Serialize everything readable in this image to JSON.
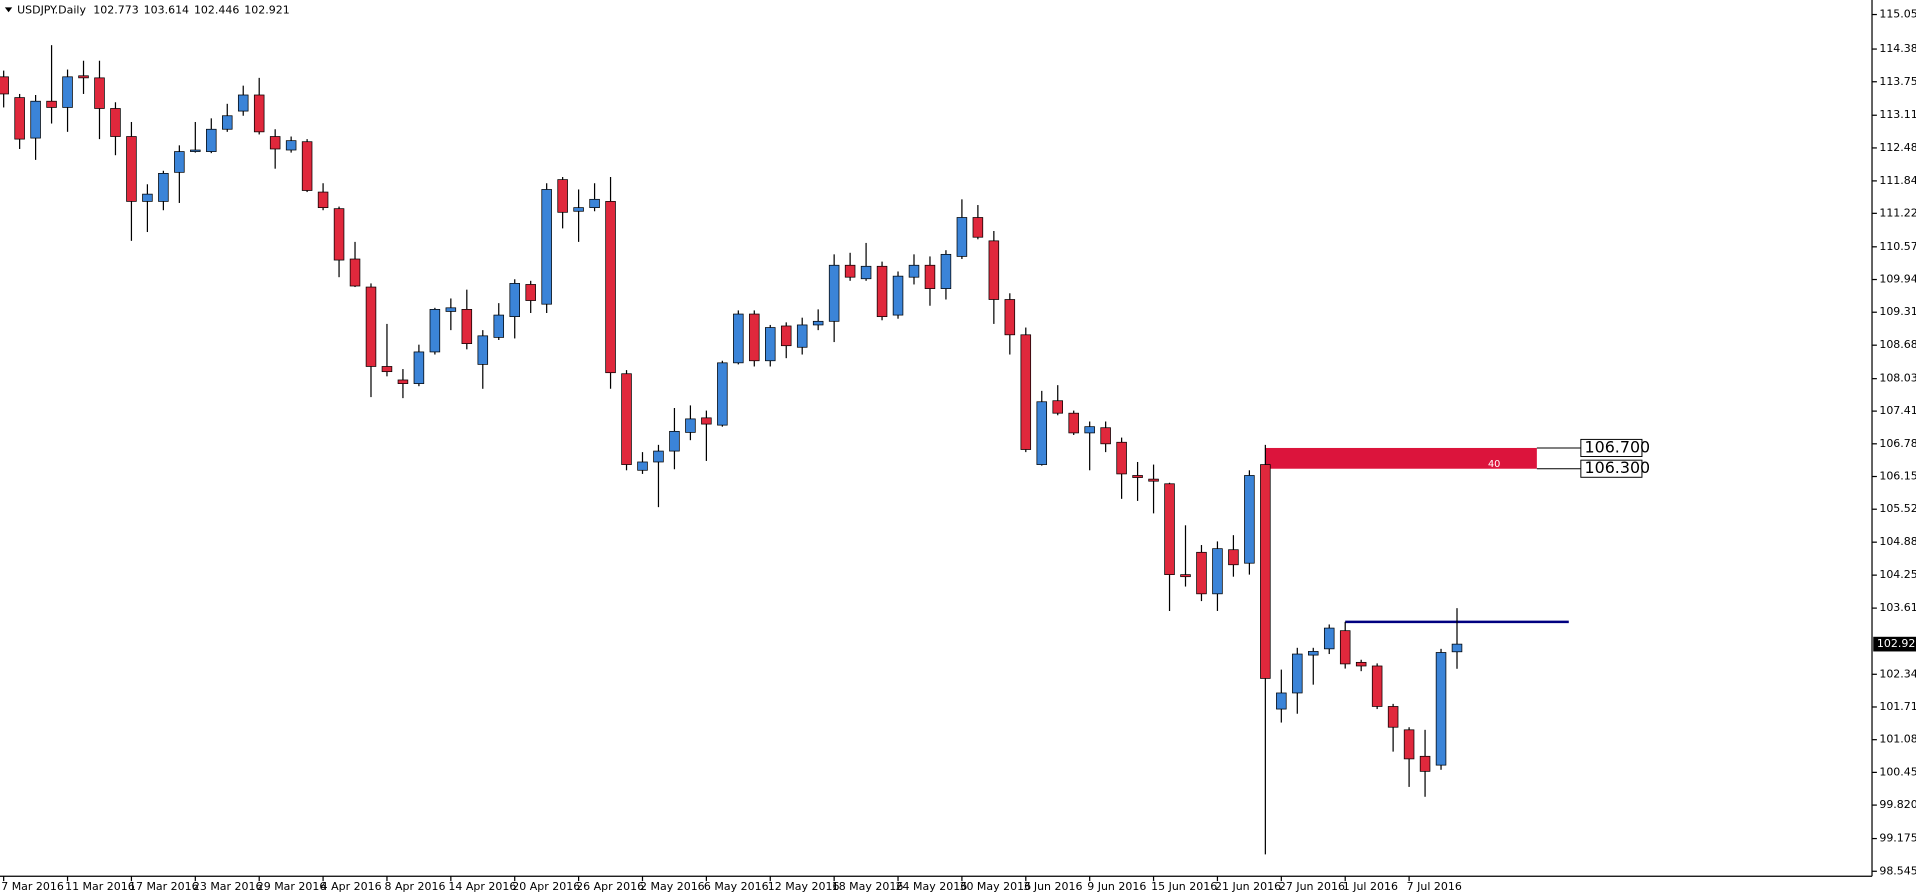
{
  "chart_data": {
    "type": "candlestick",
    "title": "USDJPY.Daily",
    "categories": [
      "7 Mar 2016",
      null,
      null,
      null,
      "11 Mar 2016",
      null,
      null,
      null,
      "17 Mar 2016",
      null,
      null,
      null,
      "23 Mar 2016",
      null,
      null,
      null,
      "29 Mar 2016",
      null,
      null,
      null,
      "4 Apr 2016",
      null,
      null,
      null,
      "8 Apr 2016",
      null,
      null,
      null,
      "14 Apr 2016",
      null,
      null,
      null,
      "20 Apr 2016",
      null,
      null,
      null,
      "26 Apr 2016",
      null,
      null,
      null,
      "2 May 2016",
      null,
      null,
      null,
      "6 May 2016",
      null,
      null,
      null,
      "12 May 2016",
      null,
      null,
      null,
      "18 May 2016",
      null,
      null,
      null,
      "24 May 2016",
      null,
      null,
      null,
      "30 May 2016",
      null,
      null,
      null,
      "3 Jun 2016",
      null,
      null,
      null,
      "9 Jun 2016",
      null,
      null,
      null,
      "15 Jun 2016",
      null,
      null,
      null,
      "21 Jun 2016",
      null,
      null,
      null,
      "27 Jun 2016",
      null,
      null,
      null,
      "1 Jul 2016",
      null,
      null,
      null,
      "7 Jul 2016",
      null,
      null,
      null
    ],
    "open": [
      113.85,
      113.45,
      112.67,
      113.38,
      113.26,
      113.87,
      113.83,
      113.24,
      112.7,
      111.45,
      111.45,
      112.01,
      112.41,
      112.41,
      112.84,
      113.19,
      113.5,
      112.7,
      112.44,
      112.6,
      111.63,
      111.31,
      110.34,
      109.8,
      108.27,
      108.01,
      107.94,
      108.55,
      109.33,
      109.37,
      108.31,
      108.83,
      109.23,
      109.85,
      109.47,
      111.87,
      111.26,
      111.33,
      111.45,
      108.13,
      106.27,
      106.43,
      106.64,
      107.0,
      107.28,
      107.14,
      108.34,
      109.28,
      108.38,
      109.05,
      108.64,
      109.07,
      109.14,
      110.22,
      109.96,
      110.2,
      109.26,
      109.99,
      110.22,
      109.77,
      110.39,
      111.14,
      110.69,
      109.56,
      108.88,
      106.38,
      107.61,
      107.37,
      106.99,
      107.09,
      106.81,
      106.17,
      106.1,
      106.01,
      104.26,
      104.69,
      103.89,
      104.74,
      104.48,
      106.38,
      101.67,
      101.98,
      102.71,
      102.83,
      103.18,
      102.57,
      102.5,
      101.72,
      101.27,
      100.76,
      100.59,
      102.773
    ],
    "high": [
      113.97,
      113.52,
      113.5,
      114.46,
      113.99,
      114.16,
      114.16,
      113.36,
      112.98,
      111.78,
      112.04,
      112.53,
      112.98,
      113.05,
      113.33,
      113.68,
      113.83,
      112.84,
      112.7,
      112.65,
      111.8,
      111.35,
      110.67,
      109.87,
      109.09,
      108.22,
      108.69,
      109.4,
      109.58,
      109.75,
      108.97,
      109.49,
      109.95,
      109.92,
      111.8,
      111.92,
      111.68,
      111.8,
      111.92,
      108.2,
      106.62,
      106.76,
      107.47,
      107.52,
      107.42,
      108.38,
      109.35,
      109.35,
      109.07,
      109.12,
      109.21,
      109.37,
      110.43,
      110.46,
      110.65,
      110.29,
      110.1,
      110.43,
      110.39,
      110.51,
      111.49,
      111.38,
      110.88,
      109.68,
      109.02,
      107.8,
      107.91,
      107.42,
      107.21,
      107.21,
      106.9,
      106.43,
      106.38,
      106.03,
      105.21,
      104.83,
      104.9,
      105.02,
      106.27,
      106.76,
      102.43,
      102.85,
      102.85,
      103.3,
      103.35,
      102.62,
      102.55,
      101.77,
      101.32,
      101.27,
      102.83,
      103.614
    ],
    "low": [
      113.26,
      112.46,
      112.25,
      112.95,
      112.79,
      113.52,
      112.65,
      112.34,
      110.69,
      110.86,
      111.28,
      111.42,
      112.39,
      112.38,
      112.79,
      113.1,
      112.74,
      112.08,
      112.39,
      111.63,
      111.28,
      109.99,
      109.8,
      107.68,
      108.08,
      107.66,
      107.89,
      108.5,
      108.97,
      108.6,
      107.84,
      108.78,
      108.81,
      109.3,
      109.3,
      110.93,
      110.67,
      111.26,
      107.84,
      106.27,
      106.2,
      105.56,
      106.29,
      106.85,
      106.45,
      107.11,
      108.31,
      108.27,
      108.27,
      108.43,
      108.5,
      108.97,
      108.74,
      109.92,
      109.92,
      109.16,
      109.19,
      109.85,
      109.44,
      109.56,
      110.34,
      110.72,
      109.09,
      108.5,
      106.62,
      106.36,
      107.33,
      106.95,
      106.27,
      106.62,
      105.72,
      105.68,
      105.44,
      103.56,
      104.03,
      103.75,
      103.56,
      104.22,
      104.26,
      98.87,
      101.41,
      101.58,
      102.14,
      102.73,
      102.45,
      102.4,
      101.67,
      100.85,
      100.17,
      99.98,
      100.5,
      102.446
    ],
    "close": [
      113.52,
      112.65,
      113.38,
      113.26,
      113.85,
      113.83,
      113.24,
      112.7,
      111.45,
      111.59,
      111.99,
      112.41,
      112.44,
      112.84,
      113.1,
      113.5,
      112.79,
      112.46,
      112.62,
      111.66,
      111.33,
      110.32,
      109.82,
      108.27,
      108.17,
      107.94,
      108.55,
      109.37,
      109.4,
      108.71,
      108.86,
      109.26,
      109.87,
      109.54,
      111.68,
      111.24,
      111.33,
      111.49,
      108.15,
      106.38,
      106.43,
      106.64,
      107.02,
      107.26,
      107.16,
      108.34,
      109.28,
      108.38,
      109.02,
      108.67,
      109.07,
      109.14,
      110.22,
      109.99,
      110.2,
      109.23,
      110.01,
      110.22,
      109.77,
      110.43,
      111.14,
      110.76,
      109.56,
      108.88,
      106.67,
      107.59,
      107.37,
      106.99,
      107.11,
      106.78,
      106.2,
      106.13,
      106.06,
      104.26,
      104.22,
      103.89,
      104.76,
      104.45,
      106.17,
      102.26,
      101.98,
      102.73,
      102.78,
      103.23,
      102.54,
      102.5,
      101.72,
      101.32,
      100.71,
      100.47,
      102.76,
      102.921
    ],
    "up_color": "#3b84d8",
    "down_color": "#e0283c",
    "ylim": [
      98.45,
      115.33
    ],
    "yticks": [
      115.05,
      114.385,
      113.755,
      {
        "value": 113.11,
        "label": "113.110"
      },
      {
        "value": 112.48,
        "label": "112.480"
      },
      111.845,
      {
        "value": 111.22,
        "label": "111.220"
      },
      110.575,
      109.945,
      109.315,
      {
        "value": 108.68,
        "label": "108.680"
      },
      108.035,
      {
        "value": 107.41,
        "label": "107.410"
      },
      {
        "value": 106.78,
        "label": "106.780"
      },
      {
        "value": 106.15,
        "label": "106.150"
      },
      {
        "value": 105.52,
        "label": "105.520"
      },
      104.885,
      {
        "value": 104.25,
        "label": "104.250"
      },
      103.615,
      {
        "value": 102.34,
        "label": "102.340"
      },
      {
        "value": 101.71,
        "label": "101.710"
      },
      {
        "value": 101.08,
        "label": "101.080"
      },
      {
        "value": 100.45,
        "label": "100.450"
      },
      {
        "value": 99.82,
        "label": "99.820"
      },
      99.175,
      98.545
    ],
    "hline": {
      "value": 103.35,
      "color": "#000080"
    },
    "zone": {
      "top": {
        "value": 106.7,
        "label": "106.700"
      },
      "bottom": {
        "value": 106.3,
        "label": "106.300"
      },
      "text": "40",
      "color": "#dc143c"
    }
  }
}
